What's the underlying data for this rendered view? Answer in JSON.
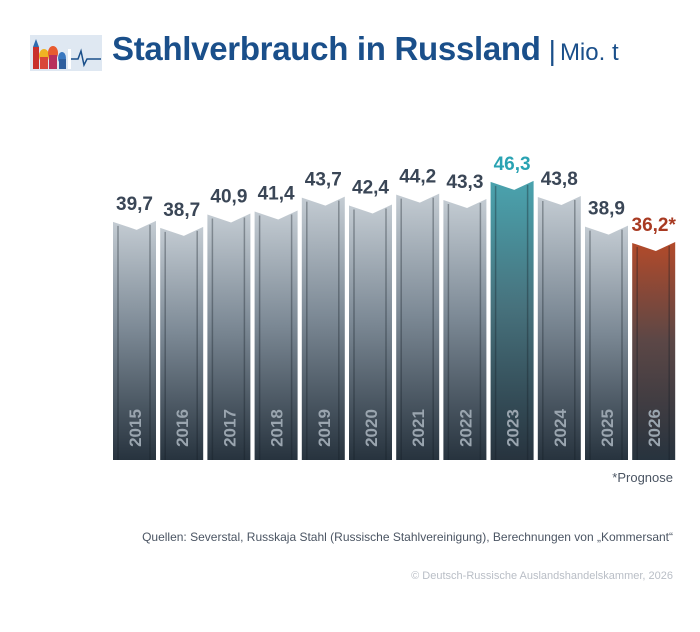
{
  "header": {
    "title": "Stahlverbrauch in Russland",
    "unit_separator": "|",
    "unit": "Mio. t"
  },
  "chart_data": {
    "type": "bar",
    "categories": [
      "2015",
      "2016",
      "2017",
      "2018",
      "2019",
      "2020",
      "2021",
      "2022",
      "2023",
      "2024",
      "2025",
      "2026"
    ],
    "values": [
      39.7,
      38.7,
      40.9,
      41.4,
      43.7,
      42.4,
      44.2,
      43.3,
      46.3,
      43.8,
      38.9,
      36.2
    ],
    "value_labels": [
      "39,7",
      "38,7",
      "40,9",
      "41,4",
      "43,7",
      "42,4",
      "44,2",
      "43,3",
      "46,3",
      "43,8",
      "38,9",
      "36,2*"
    ],
    "title": "Stahlverbrauch in Russland",
    "ylabel": "Mio. t",
    "highlight": {
      "2023": "#2aa3b3",
      "2026": "#a83a22"
    },
    "colors": {
      "default_label": "#3a4656",
      "bar_top": "#c4ccd3",
      "bar_bottom": "#27333e"
    }
  },
  "footnote": "*Prognose",
  "source": "Quellen: Severstal, Russkaja Stahl (Russische Stahlvereinigung), Berechnungen von „Kommersant“",
  "copyright": "© Deutsch-Russische Auslandshandelskammer, 2026"
}
